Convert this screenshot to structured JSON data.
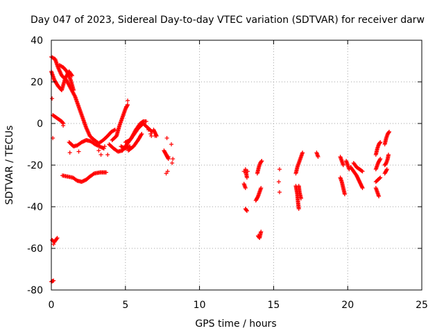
{
  "chart_data": {
    "type": "scatter",
    "title": "Day 047 of 2023, Sidereal Day-to-day VTEC variation (SDTVAR) for receiver darw",
    "xlabel": "GPS time / hours",
    "ylabel": "SDTVAR / TECUs",
    "xlim": [
      0,
      25
    ],
    "ylim": [
      -80,
      40
    ],
    "xticks": [
      0,
      5,
      10,
      15,
      20,
      25
    ],
    "yticks": [
      -80,
      -60,
      -40,
      -20,
      0,
      20,
      40
    ],
    "xtick_labels": [
      "0",
      "5",
      "10",
      "15",
      "20",
      "25"
    ],
    "ytick_labels": [
      "-80",
      "-60",
      "-40",
      "-20",
      "0",
      "20",
      "40"
    ],
    "grid": true,
    "marker": "plus",
    "marker_color": "#ff0000",
    "tracks": [
      [
        [
          0.0,
          32
        ],
        [
          0.25,
          31
        ],
        [
          0.45,
          27
        ],
        [
          0.7,
          23
        ],
        [
          1.0,
          21
        ],
        [
          1.3,
          17
        ],
        [
          1.6,
          13
        ],
        [
          1.85,
          8
        ],
        [
          2.1,
          3
        ],
        [
          2.35,
          -2
        ],
        [
          2.6,
          -6
        ]
      ],
      [
        [
          0.0,
          25
        ],
        [
          0.2,
          21
        ],
        [
          0.45,
          18
        ],
        [
          0.7,
          16
        ],
        [
          0.95,
          22
        ],
        [
          1.2,
          25
        ],
        [
          1.4,
          23
        ]
      ],
      [
        [
          0.55,
          28
        ],
        [
          0.8,
          27
        ],
        [
          1.05,
          25
        ],
        [
          1.3,
          21
        ],
        [
          1.5,
          16
        ]
      ],
      [
        [
          0.1,
          4
        ],
        [
          0.3,
          3
        ],
        [
          0.5,
          2
        ],
        [
          0.7,
          1
        ],
        [
          0.8,
          0
        ]
      ],
      [
        [
          1.2,
          -9
        ],
        [
          1.5,
          -11
        ],
        [
          1.75,
          -10.5
        ],
        [
          2.05,
          -9
        ],
        [
          2.35,
          -8
        ],
        [
          2.65,
          -8.5
        ],
        [
          2.95,
          -10
        ],
        [
          3.25,
          -11
        ],
        [
          3.55,
          -12
        ]
      ],
      [
        [
          0.75,
          -25
        ],
        [
          1.1,
          -25.5
        ],
        [
          1.45,
          -26
        ],
        [
          1.75,
          -27.5
        ],
        [
          2.05,
          -28
        ],
        [
          2.35,
          -27
        ],
        [
          2.6,
          -25.5
        ],
        [
          2.9,
          -24
        ],
        [
          3.3,
          -23.5
        ],
        [
          3.7,
          -23.5
        ]
      ],
      [
        [
          2.6,
          -6
        ],
        [
          2.9,
          -8
        ],
        [
          3.2,
          -9.5
        ],
        [
          3.5,
          -8
        ],
        [
          3.8,
          -6
        ],
        [
          4.05,
          -4
        ],
        [
          4.3,
          -3
        ]
      ],
      [
        [
          3.9,
          -10
        ],
        [
          4.2,
          -12
        ],
        [
          4.5,
          -13.5
        ],
        [
          4.8,
          -13
        ],
        [
          5.1,
          -10
        ],
        [
          5.4,
          -7
        ],
        [
          5.7,
          -3
        ],
        [
          6.0,
          0
        ],
        [
          6.2,
          1
        ],
        [
          6.4,
          1
        ]
      ],
      [
        [
          4.1,
          -8
        ],
        [
          4.4,
          -6
        ],
        [
          4.6,
          -1
        ],
        [
          4.85,
          4
        ],
        [
          5.0,
          7
        ],
        [
          5.15,
          9
        ]
      ],
      [
        [
          5.0,
          -9
        ],
        [
          5.3,
          -8
        ],
        [
          5.6,
          -5
        ],
        [
          5.9,
          -2
        ],
        [
          6.2,
          0
        ],
        [
          6.5,
          -2
        ],
        [
          6.8,
          -4
        ]
      ],
      [
        [
          5.2,
          -13
        ],
        [
          5.55,
          -11
        ],
        [
          5.85,
          -8
        ],
        [
          6.1,
          -5
        ]
      ],
      [
        [
          4.7,
          -11
        ],
        [
          5.0,
          -12
        ],
        [
          5.3,
          -11
        ]
      ],
      [
        [
          6.9,
          -3
        ],
        [
          7.1,
          -6
        ]
      ],
      [
        [
          7.6,
          -13
        ],
        [
          7.75,
          -15
        ],
        [
          7.9,
          -17
        ]
      ],
      [
        [
          0.05,
          -56
        ],
        [
          0.2,
          -57
        ],
        [
          0.4,
          -55
        ]
      ],
      [
        [
          0.0,
          -76
        ],
        [
          0.15,
          -75.5
        ]
      ],
      [
        [
          13.1,
          -22
        ],
        [
          13.15,
          -24
        ],
        [
          13.2,
          -26
        ]
      ],
      [
        [
          13.0,
          -29
        ],
        [
          13.1,
          -31
        ]
      ],
      [
        [
          13.1,
          -41
        ],
        [
          13.2,
          -42
        ]
      ],
      [
        [
          13.9,
          -24
        ],
        [
          14.0,
          -21
        ],
        [
          14.1,
          -19
        ],
        [
          14.2,
          -18
        ]
      ],
      [
        [
          13.8,
          -37
        ],
        [
          13.95,
          -35
        ],
        [
          14.05,
          -33
        ],
        [
          14.15,
          -31
        ]
      ],
      [
        [
          13.95,
          -54
        ],
        [
          14.05,
          -55
        ],
        [
          14.15,
          -52
        ]
      ],
      [
        [
          16.5,
          -24
        ],
        [
          16.6,
          -21
        ],
        [
          16.7,
          -19
        ],
        [
          16.85,
          -16
        ],
        [
          16.95,
          -14
        ]
      ],
      [
        [
          16.5,
          -30
        ],
        [
          16.6,
          -34
        ],
        [
          16.65,
          -38
        ],
        [
          16.7,
          -41
        ]
      ],
      [
        [
          16.7,
          -30
        ],
        [
          16.75,
          -33
        ],
        [
          16.85,
          -36
        ]
      ],
      [
        [
          17.9,
          -14
        ],
        [
          18.0,
          -16
        ]
      ],
      [
        [
          19.5,
          -16
        ],
        [
          19.6,
          -18
        ],
        [
          19.7,
          -20
        ]
      ],
      [
        [
          19.5,
          -26
        ],
        [
          19.6,
          -28
        ],
        [
          19.7,
          -31
        ],
        [
          19.8,
          -34
        ]
      ],
      [
        [
          19.9,
          -18
        ],
        [
          20.1,
          -22
        ]
      ],
      [
        [
          20.2,
          -21
        ],
        [
          20.4,
          -23
        ],
        [
          20.6,
          -25
        ],
        [
          20.8,
          -28
        ],
        [
          21.0,
          -31
        ]
      ],
      [
        [
          20.4,
          -19
        ],
        [
          20.6,
          -21
        ],
        [
          20.8,
          -22
        ],
        [
          21.0,
          -23
        ]
      ],
      [
        [
          21.9,
          -15
        ],
        [
          22.0,
          -12
        ],
        [
          22.1,
          -10
        ],
        [
          22.2,
          -9
        ]
      ],
      [
        [
          21.9,
          -22
        ],
        [
          22.05,
          -19
        ],
        [
          22.2,
          -17
        ]
      ],
      [
        [
          21.9,
          -28
        ],
        [
          22.05,
          -27
        ],
        [
          22.2,
          -26
        ]
      ],
      [
        [
          21.9,
          -31
        ],
        [
          22.0,
          -33
        ],
        [
          22.1,
          -35
        ]
      ],
      [
        [
          22.5,
          -10
        ],
        [
          22.6,
          -7
        ],
        [
          22.7,
          -5
        ],
        [
          22.8,
          -4
        ]
      ],
      [
        [
          22.5,
          -20
        ],
        [
          22.6,
          -19
        ],
        [
          22.7,
          -17
        ],
        [
          22.75,
          -15
        ]
      ],
      [
        [
          22.5,
          -24
        ],
        [
          22.65,
          -22
        ]
      ]
    ],
    "points": [
      [
        0.05,
        12
      ],
      [
        0.1,
        -7
      ],
      [
        0.8,
        -1
      ],
      [
        0.15,
        -58
      ],
      [
        1.25,
        -14
      ],
      [
        1.85,
        -13.5
      ],
      [
        3.2,
        -13
      ],
      [
        3.35,
        -15
      ],
      [
        3.8,
        -15
      ],
      [
        3.6,
        -11
      ],
      [
        5.15,
        11
      ],
      [
        5.05,
        8
      ],
      [
        6.55,
        -3
      ],
      [
        6.7,
        -5
      ],
      [
        6.75,
        -6
      ],
      [
        7.0,
        -6
      ],
      [
        7.8,
        -7
      ],
      [
        8.1,
        -10
      ],
      [
        7.9,
        -16
      ],
      [
        8.2,
        -17
      ],
      [
        8.15,
        -19
      ],
      [
        7.85,
        -23
      ],
      [
        7.75,
        -24
      ],
      [
        13.0,
        -23
      ],
      [
        13.25,
        -23
      ],
      [
        15.4,
        -22
      ],
      [
        15.35,
        -28
      ],
      [
        15.4,
        -33
      ]
    ]
  }
}
